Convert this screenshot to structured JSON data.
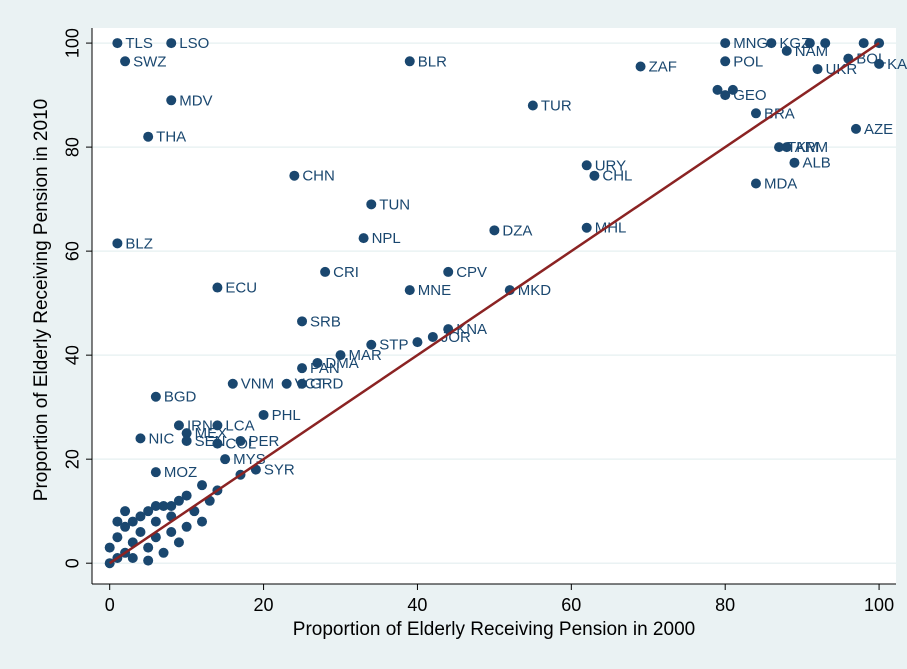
{
  "chart_data": {
    "type": "scatter",
    "x_label": "Proportion of Elderly Receiving Pension in 2000",
    "y_label": "Proportion of Elderly Receiving Pension in 2010",
    "xlim": [
      -2.3,
      102.2
    ],
    "ylim": [
      -4,
      102.9
    ],
    "xticks": [
      0,
      20,
      40,
      60,
      80,
      100
    ],
    "yticks": [
      0,
      20,
      40,
      60,
      80,
      100
    ],
    "grid": true,
    "series": [
      {
        "color": "#1a476f",
        "x": [
          1,
          8,
          2,
          8,
          5,
          1,
          24,
          39,
          69,
          55,
          62,
          63,
          34,
          33,
          50,
          62,
          14,
          28,
          44,
          39,
          52,
          25,
          44,
          42,
          34,
          30,
          27,
          25,
          23,
          25,
          16,
          6,
          20,
          14,
          9,
          10,
          4,
          10,
          14,
          17,
          15,
          6,
          19,
          80,
          86,
          88,
          80,
          92,
          96,
          100,
          84,
          80,
          88,
          87,
          89,
          84,
          97,
          91,
          93,
          98,
          100,
          79,
          81,
          0,
          0,
          1,
          1,
          2,
          2,
          3,
          3,
          4,
          4,
          5,
          5,
          6,
          6,
          7,
          7,
          8,
          8,
          9,
          9,
          10,
          10,
          11,
          12,
          12,
          13,
          14,
          6,
          3,
          1,
          2,
          5,
          8,
          40,
          17
        ],
        "y": [
          100,
          100,
          96.5,
          89,
          82,
          61.5,
          74.5,
          96.5,
          95.5,
          88,
          76.5,
          74.5,
          69,
          62.5,
          64,
          64.5,
          53,
          56,
          56,
          52.5,
          52.5,
          46.5,
          45,
          43.5,
          42,
          40,
          38.5,
          37.5,
          34.5,
          34.5,
          34.5,
          32,
          28.5,
          26.5,
          26.5,
          25,
          24,
          23.5,
          23,
          23.5,
          20,
          17.5,
          18,
          100,
          100,
          98.5,
          96.5,
          95,
          97,
          96,
          86.5,
          90,
          80,
          80,
          77,
          73,
          83.5,
          100,
          100,
          100,
          100,
          91,
          91,
          0,
          3,
          1,
          5,
          2,
          7,
          4,
          1,
          6,
          9,
          3,
          10,
          5,
          8,
          2,
          11,
          6,
          9,
          4,
          12,
          7,
          13,
          10,
          15,
          8,
          12,
          14,
          11,
          8,
          8,
          10,
          0.5,
          11,
          42.5,
          17
        ],
        "labels": [
          "TLS",
          "LSO",
          "SWZ",
          "MDV",
          "THA",
          "BLZ",
          "CHN",
          "BLR",
          "ZAF",
          "TUR",
          "URY",
          "CHL",
          "TUN",
          "NPL",
          "DZA",
          "MHL",
          "ECU",
          "CRI",
          "CPV",
          "MNE",
          "MKD",
          "SRB",
          "KNA",
          "JOR",
          "STP",
          "MAR",
          "DMA",
          "PAN",
          "VCT",
          "GRD",
          "VNM",
          "BGD",
          "PHL",
          "LCA",
          "IRN",
          "MEX",
          "NIC",
          "SEN",
          "COL",
          "PER",
          "MYS",
          "MOZ",
          "SYR",
          "MNG",
          "KGZ",
          "NAM",
          "POL",
          "UKR",
          "BOL",
          "KAZ",
          "BRA",
          "GEO",
          "ARM",
          "TKM",
          "ALB",
          "MDA",
          "AZE",
          null,
          null,
          null,
          null,
          null,
          null,
          null,
          null,
          null,
          null,
          null,
          null,
          null,
          null,
          null,
          null,
          null,
          null,
          null,
          null,
          null,
          null,
          null,
          null,
          null,
          null,
          null,
          null,
          null,
          null,
          null,
          null,
          null,
          null,
          null,
          null,
          null,
          null,
          null,
          null,
          null
        ]
      }
    ],
    "fit_line": {
      "color": "#8b2323",
      "x": [
        0,
        100
      ],
      "y": [
        0,
        100
      ]
    }
  }
}
